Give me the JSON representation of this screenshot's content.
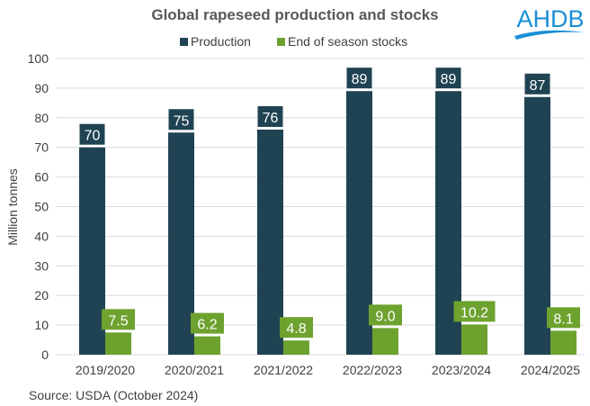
{
  "chart_data": {
    "type": "bar",
    "title": "Global rapeseed production and stocks",
    "xlabel": "",
    "ylabel": "Million tonnes",
    "ylim": [
      0,
      100
    ],
    "yticks": [
      0,
      10,
      20,
      30,
      40,
      50,
      60,
      70,
      80,
      90,
      100
    ],
    "grid": true,
    "legend_position": "top",
    "categories": [
      "2019/2020",
      "2020/2021",
      "2021/2022",
      "2022/2023",
      "2023/2024",
      "2024/2025"
    ],
    "series": [
      {
        "name": "Production",
        "color": "#1f4352",
        "values": [
          70,
          75,
          76,
          89,
          89,
          87
        ],
        "labels": [
          "70",
          "75",
          "76",
          "89",
          "89",
          "87"
        ]
      },
      {
        "name": "End of season stocks",
        "color": "#6ea22f",
        "values": [
          7.5,
          6.2,
          4.8,
          9.0,
          10.2,
          8.1
        ],
        "labels": [
          "7.5",
          "6.2",
          "4.8",
          "9.0",
          "10.2",
          "8.1"
        ]
      }
    ],
    "source": "Source: USDA (October 2024)"
  },
  "logo": {
    "text": "AHDB",
    "color": "#1a8fd6"
  }
}
